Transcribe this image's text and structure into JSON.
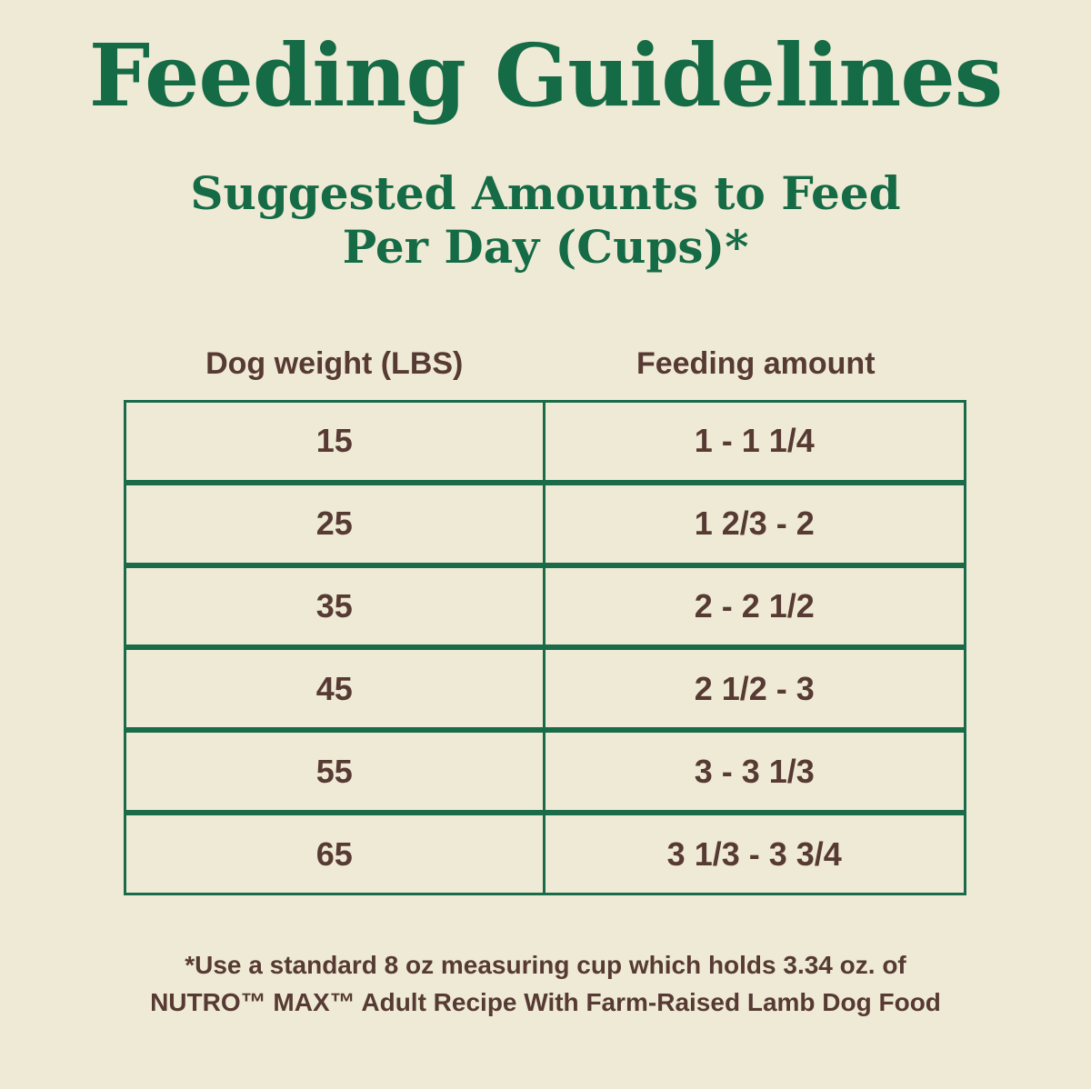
{
  "page": {
    "title": "Feeding Guidelines",
    "subtitle_line1": "Suggested Amounts to Feed",
    "subtitle_line2": "Per Day (Cups)*"
  },
  "table": {
    "columns": [
      "Dog weight (LBS)",
      "Feeding amount"
    ],
    "rows": [
      {
        "weight": "15",
        "amount": "1 - 1 1/4"
      },
      {
        "weight": "25",
        "amount": "1 2/3 - 2"
      },
      {
        "weight": "35",
        "amount": "2 - 2 1/2"
      },
      {
        "weight": "45",
        "amount": "2 1/2 - 3"
      },
      {
        "weight": "55",
        "amount": "3 - 3 1/3"
      },
      {
        "weight": "65",
        "amount": "3 1/3 - 3 3/4"
      }
    ]
  },
  "footnote": {
    "line1": "*Use a standard 8 oz measuring cup which holds 3.34 oz. of",
    "line2": "NUTRO™ MAX™ Adult Recipe With Farm-Raised Lamb Dog Food"
  },
  "colors": {
    "background": "#EFEAD5",
    "title_green": "#156B45",
    "border_green": "#1A6B4A",
    "text_brown": "#563A33"
  }
}
